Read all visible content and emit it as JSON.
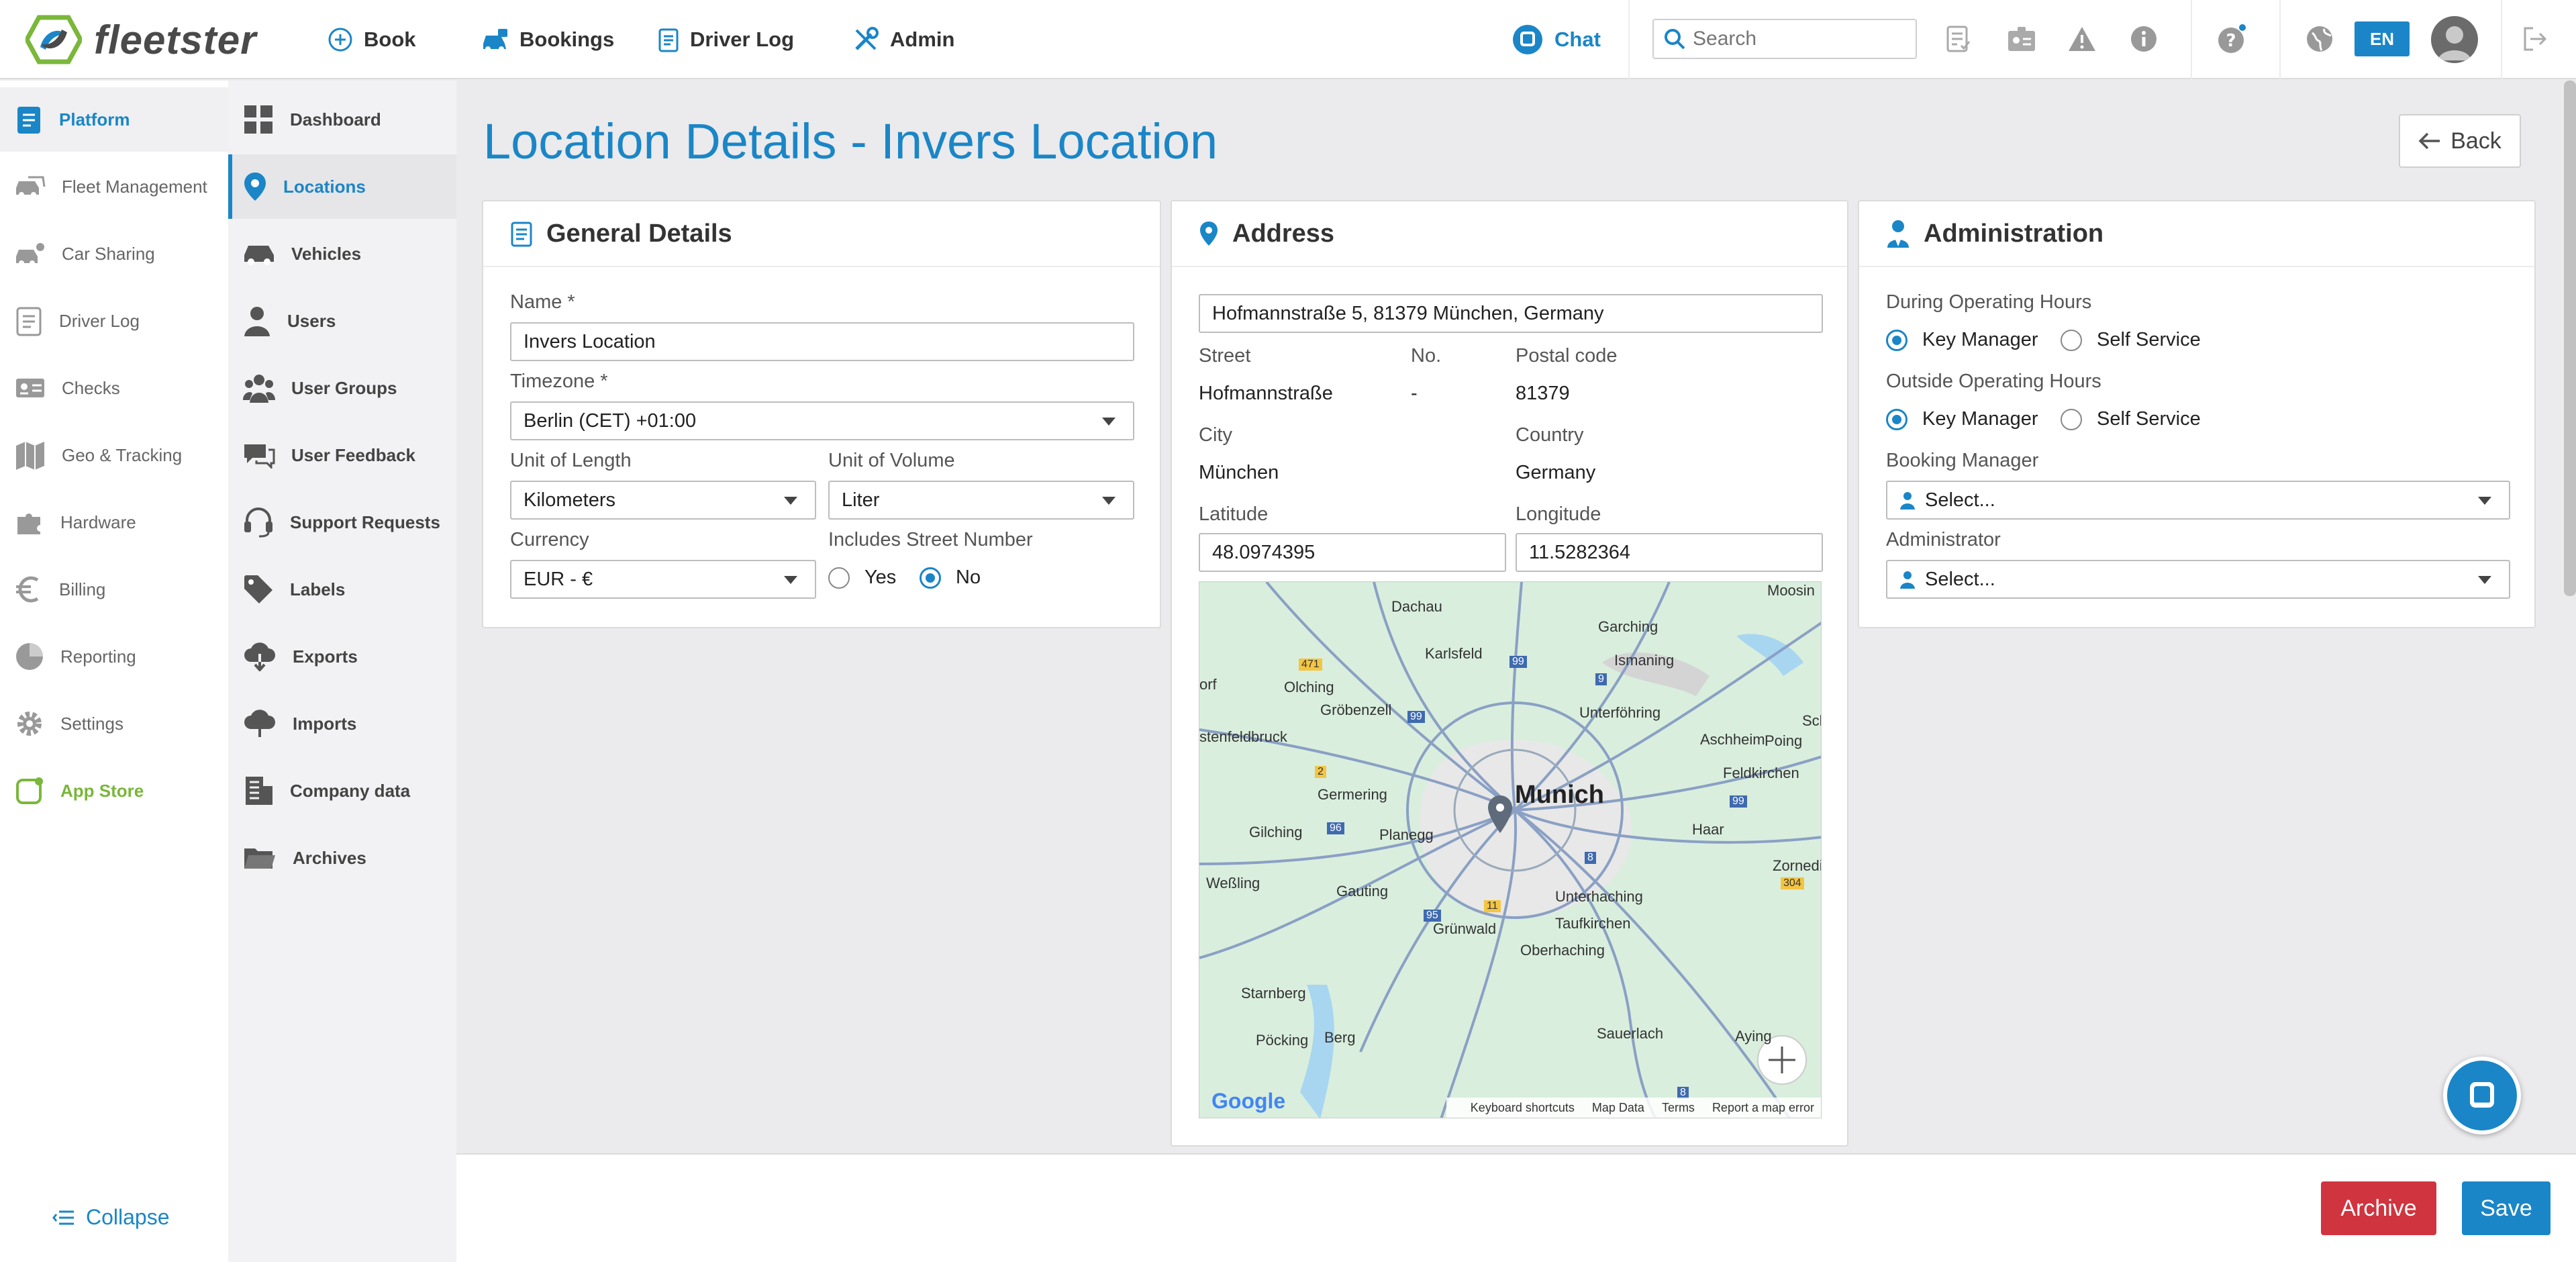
{
  "brand": {
    "name": "fleetster"
  },
  "topnav": {
    "items": [
      {
        "label": "Book",
        "icon": "plus-circle-icon"
      },
      {
        "label": "Bookings",
        "icon": "car-icon"
      },
      {
        "label": "Driver Log",
        "icon": "clipboard-icon"
      },
      {
        "label": "Admin",
        "icon": "tools-icon"
      }
    ],
    "chat_label": "Chat",
    "search_placeholder": "Search",
    "language": "EN"
  },
  "sidebar": {
    "items": [
      {
        "label": "Platform",
        "icon": "clipboard-icon",
        "active": true
      },
      {
        "label": "Fleet Management",
        "icon": "cars-icon"
      },
      {
        "label": "Car Sharing",
        "icon": "car-sharing-icon"
      },
      {
        "label": "Driver Log",
        "icon": "logbook-icon"
      },
      {
        "label": "Checks",
        "icon": "id-card-icon"
      },
      {
        "label": "Geo & Tracking",
        "icon": "map-icon"
      },
      {
        "label": "Hardware",
        "icon": "puzzle-icon"
      },
      {
        "label": "Billing",
        "icon": "euro-icon"
      },
      {
        "label": "Reporting",
        "icon": "pie-chart-icon"
      },
      {
        "label": "Settings",
        "icon": "gear-icon"
      },
      {
        "label": "App Store",
        "icon": "app-store-icon"
      }
    ],
    "collapse_label": "Collapse"
  },
  "subnav": {
    "items": [
      {
        "label": "Dashboard",
        "icon": "dashboard-icon"
      },
      {
        "label": "Locations",
        "icon": "location-pin-icon",
        "active": true
      },
      {
        "label": "Vehicles",
        "icon": "car-icon"
      },
      {
        "label": "Users",
        "icon": "user-icon"
      },
      {
        "label": "User Groups",
        "icon": "users-icon"
      },
      {
        "label": "User Feedback",
        "icon": "feedback-icon"
      },
      {
        "label": "Support Requests",
        "icon": "headset-icon"
      },
      {
        "label": "Labels",
        "icon": "tag-icon"
      },
      {
        "label": "Exports",
        "icon": "cloud-download-icon"
      },
      {
        "label": "Imports",
        "icon": "cloud-upload-icon"
      },
      {
        "label": "Company data",
        "icon": "building-icon"
      },
      {
        "label": "Archives",
        "icon": "folder-icon"
      }
    ]
  },
  "page": {
    "title": "Location Details - Invers Location",
    "back_label": "Back"
  },
  "general": {
    "heading": "General Details",
    "name_label": "Name *",
    "name_value": "Invers Location",
    "timezone_label": "Timezone *",
    "timezone_value": "Berlin (CET) +01:00",
    "length_label": "Unit of Length",
    "length_value": "Kilometers",
    "volume_label": "Unit of Volume",
    "volume_value": "Liter",
    "currency_label": "Currency",
    "currency_value": "EUR - €",
    "street_number_label": "Includes Street Number",
    "yes_label": "Yes",
    "no_label": "No"
  },
  "address": {
    "heading": "Address",
    "full_address": "Hofmannstraße 5, 81379 München, Germany",
    "street_label": "Street",
    "street_value": "Hofmannstraße",
    "no_label": "No.",
    "no_value": "-",
    "postal_label": "Postal code",
    "postal_value": "81379",
    "city_label": "City",
    "city_value": "München",
    "country_label": "Country",
    "country_value": "Germany",
    "lat_label": "Latitude",
    "lat_value": "48.0974395",
    "lng_label": "Longitude",
    "lng_value": "11.5282364"
  },
  "map": {
    "main_city": "Munich",
    "places": [
      "Moosin",
      "Dachau",
      "Garching",
      "Karlsfeld",
      "Ismaning",
      "Olching",
      "Gröbenzell",
      "Unterföhring",
      "Sch",
      "stenfeldbruck",
      "Aschheim",
      "Poing",
      "Feldkirchen",
      "Germering",
      "Gilching",
      "Planegg",
      "Haar",
      "Zornedi",
      "Weßling",
      "Gauting",
      "Unterhaching",
      "Grünwald",
      "Taufkirchen",
      "Oberhaching",
      "Starnberg",
      "Pöcking",
      "Berg",
      "Sauerlach",
      "Aying",
      "orf"
    ],
    "road_badges": [
      "471",
      "99",
      "9",
      "99",
      "2",
      "96",
      "99",
      "8",
      "11",
      "95",
      "304",
      "8"
    ],
    "google_label": "Google",
    "footer_links": [
      "Keyboard shortcuts",
      "Map Data",
      "Terms",
      "Report a map error"
    ]
  },
  "administration": {
    "heading": "Administration",
    "during_label": "During Operating Hours",
    "outside_label": "Outside Operating Hours",
    "key_manager_label": "Key Manager",
    "self_service_label": "Self Service",
    "booking_manager_label": "Booking Manager",
    "booking_manager_value": "Select...",
    "administrator_label": "Administrator",
    "administrator_value": "Select..."
  },
  "footer": {
    "archive_label": "Archive",
    "save_label": "Save"
  },
  "colors": {
    "accent": "#1a86c7",
    "danger": "#d0343f",
    "app_store": "#7ab73a"
  }
}
